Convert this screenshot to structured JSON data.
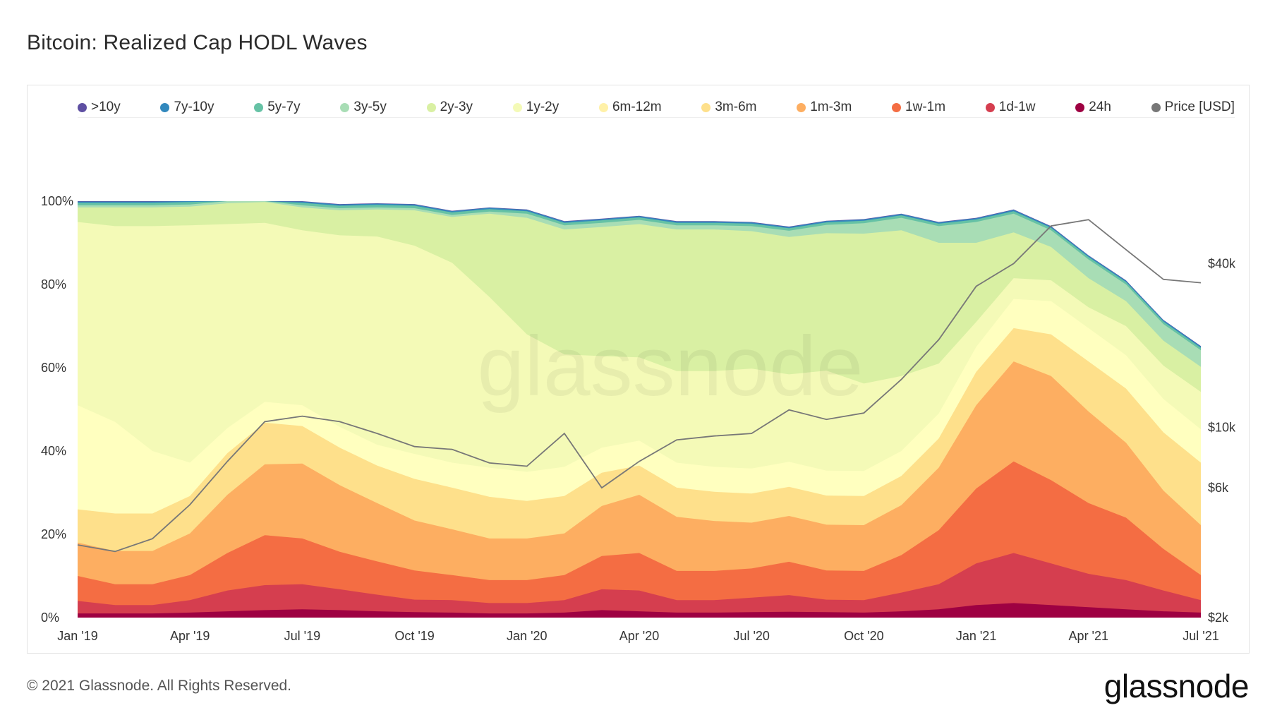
{
  "title": "Bitcoin: Realized Cap HODL Waves",
  "footer": {
    "copyright": "© 2021 Glassnode. All Rights Reserved.",
    "brand": "glassnode"
  },
  "watermark": "glassnode",
  "chart_data": {
    "type": "area",
    "stacked": true,
    "x": [
      "2019-01",
      "2019-02",
      "2019-03",
      "2019-04",
      "2019-05",
      "2019-06",
      "2019-07",
      "2019-08",
      "2019-09",
      "2019-10",
      "2019-11",
      "2019-12",
      "2020-01",
      "2020-02",
      "2020-03",
      "2020-04",
      "2020-05",
      "2020-06",
      "2020-07",
      "2020-08",
      "2020-09",
      "2020-10",
      "2020-11",
      "2020-12",
      "2021-01",
      "2021-02",
      "2021-03",
      "2021-04",
      "2021-05",
      "2021-06",
      "2021-07"
    ],
    "xticks": [
      "Jan '19",
      "Apr '19",
      "Jul '19",
      "Oct '19",
      "Jan '20",
      "Apr '20",
      "Jul '20",
      "Oct '20",
      "Jan '21",
      "Apr '21",
      "Jul '21"
    ],
    "yticks": [
      "0%",
      "20%",
      "40%",
      "60%",
      "80%",
      "100%"
    ],
    "y2ticks": [
      "$2k",
      "$6k",
      "$10k",
      "$40k"
    ],
    "ylim": [
      0,
      100
    ],
    "y2_scale": "log",
    "y2lim": [
      2000,
      100000
    ],
    "legend_position": "top",
    "series": [
      {
        "name": "24h",
        "color": "#9e0142",
        "values": [
          1,
          1,
          1,
          1.2,
          1.5,
          1.8,
          2,
          1.8,
          1.5,
          1.3,
          1.2,
          1,
          1,
          1.2,
          1.8,
          1.5,
          1.2,
          1.2,
          1.3,
          1.4,
          1.3,
          1.2,
          1.5,
          2,
          3,
          3.5,
          3,
          2.5,
          2,
          1.5,
          1.2
        ]
      },
      {
        "name": "1d-1w",
        "color": "#d53e4f",
        "values": [
          3,
          2,
          2,
          3,
          5,
          6,
          6,
          5,
          4,
          3,
          3,
          2.5,
          2.5,
          3,
          5,
          5,
          3,
          3,
          3.5,
          4,
          3,
          3,
          4.5,
          6,
          10,
          12,
          10,
          8,
          7,
          5,
          3
        ]
      },
      {
        "name": "1w-1m",
        "color": "#f46d43",
        "values": [
          6,
          5,
          5,
          6,
          9,
          12,
          11,
          9,
          8,
          7,
          6,
          5.5,
          5.5,
          6,
          8,
          9,
          7,
          7,
          7,
          8,
          7,
          7,
          9,
          13,
          18,
          22,
          20,
          17,
          15,
          10,
          6
        ]
      },
      {
        "name": "1m-3m",
        "color": "#fdae61",
        "values": [
          8,
          8,
          8,
          10,
          14,
          17,
          18,
          16,
          14,
          12,
          11,
          10,
          10,
          10,
          12,
          14,
          13,
          12,
          11,
          11,
          11,
          11,
          12,
          15,
          20,
          24,
          25,
          22,
          18,
          14,
          12
        ]
      },
      {
        "name": "3m-6m",
        "color": "#fee08b",
        "values": [
          8,
          9,
          9,
          9,
          10,
          10,
          9,
          9,
          9,
          10,
          10,
          10,
          9,
          9,
          8,
          7,
          7,
          7,
          7,
          7,
          7,
          7,
          7,
          7,
          8,
          8,
          10,
          12,
          13,
          14,
          15
        ]
      },
      {
        "name": "6m-12m",
        "color": "#ffffbf",
        "values": [
          25,
          22,
          15,
          8,
          6,
          5,
          5,
          5,
          5,
          6,
          6,
          7,
          7,
          7,
          6,
          6,
          6,
          6,
          6,
          6,
          6,
          6,
          6,
          6,
          6,
          7,
          8,
          8,
          8,
          8,
          8
        ]
      },
      {
        "name": "1y-2y",
        "color": "#f4fab7",
        "values": [
          44,
          47,
          54,
          57,
          49,
          43,
          42,
          46,
          50,
          50,
          48,
          41,
          33,
          27,
          22,
          20,
          22,
          23,
          24,
          21,
          24,
          21,
          18,
          12,
          6,
          5,
          5,
          5,
          7,
          8,
          9
        ]
      },
      {
        "name": "2y-3y",
        "color": "#d9f0a3",
        "values": [
          3.5,
          4.5,
          4.5,
          4.5,
          5,
          5,
          5.5,
          6,
          6.5,
          8.5,
          11,
          20,
          28,
          30,
          31,
          32,
          34,
          34,
          33,
          33,
          33,
          36,
          35,
          29,
          19,
          11,
          8,
          7,
          6,
          6,
          6
        ]
      },
      {
        "name": "3y-5y",
        "color": "#a8ddb5",
        "values": [
          0.5,
          0.5,
          0.5,
          0.5,
          0.5,
          0.5,
          0.5,
          0.5,
          0.5,
          0.5,
          0.5,
          0.5,
          1,
          1,
          1,
          1,
          1,
          1,
          1.2,
          1.5,
          2,
          2.5,
          3,
          4,
          5,
          4.5,
          4,
          4.5,
          4,
          4,
          4
        ]
      },
      {
        "name": "5y-7y",
        "color": "#66c2a5",
        "values": [
          0.6,
          0.6,
          0.6,
          0.6,
          0.6,
          0.6,
          0.6,
          0.6,
          0.6,
          0.6,
          0.6,
          0.6,
          0.6,
          0.6,
          0.6,
          0.6,
          0.6,
          0.6,
          0.6,
          0.6,
          0.6,
          0.6,
          0.6,
          0.6,
          0.6,
          0.6,
          0.6,
          0.6,
          0.6,
          0.6,
          0.6
        ]
      },
      {
        "name": "7y-10y",
        "color": "#3288bd",
        "values": [
          0.3,
          0.3,
          0.3,
          0.3,
          0.3,
          0.3,
          0.3,
          0.3,
          0.3,
          0.3,
          0.3,
          0.3,
          0.3,
          0.3,
          0.3,
          0.3,
          0.3,
          0.3,
          0.3,
          0.3,
          0.3,
          0.3,
          0.3,
          0.3,
          0.3,
          0.3,
          0.3,
          0.3,
          0.3,
          0.3,
          0.3
        ]
      },
      {
        "name": ">10y",
        "color": "#5e4fa2",
        "values": [
          0.1,
          0.1,
          0.1,
          0.1,
          0.1,
          0.1,
          0.1,
          0.1,
          0.1,
          0.1,
          0.1,
          0.1,
          0.1,
          0.1,
          0.1,
          0.1,
          0.1,
          0.1,
          0.1,
          0.1,
          0.1,
          0.1,
          0.1,
          0.1,
          0.1,
          0.1,
          0.1,
          0.1,
          0.1,
          0.1,
          0.1
        ]
      }
    ],
    "price": {
      "name": "Price [USD]",
      "color": "#777777",
      "values": [
        3700,
        3500,
        3900,
        5200,
        7500,
        10500,
        11000,
        10500,
        9500,
        8500,
        8300,
        7400,
        7200,
        9500,
        6000,
        7500,
        9000,
        9300,
        9500,
        11600,
        10700,
        11300,
        15000,
        21000,
        33000,
        40000,
        55000,
        58000,
        45000,
        35000,
        34000
      ]
    },
    "legend": [
      {
        "label": ">10y",
        "color": "#5e4fa2"
      },
      {
        "label": "7y-10y",
        "color": "#3288bd"
      },
      {
        "label": "5y-7y",
        "color": "#66c2a5"
      },
      {
        "label": "3y-5y",
        "color": "#a8ddb5"
      },
      {
        "label": "2y-3y",
        "color": "#d9f0a3"
      },
      {
        "label": "1y-2y",
        "color": "#f4fab7"
      },
      {
        "label": "6m-12m",
        "color": "#fff1a8"
      },
      {
        "label": "3m-6m",
        "color": "#fee08b"
      },
      {
        "label": "1m-3m",
        "color": "#fdae61"
      },
      {
        "label": "1w-1m",
        "color": "#f46d43"
      },
      {
        "label": "1d-1w",
        "color": "#d53e4f"
      },
      {
        "label": "24h",
        "color": "#9e0142"
      },
      {
        "label": "Price [USD]",
        "color": "#777777"
      }
    ]
  }
}
